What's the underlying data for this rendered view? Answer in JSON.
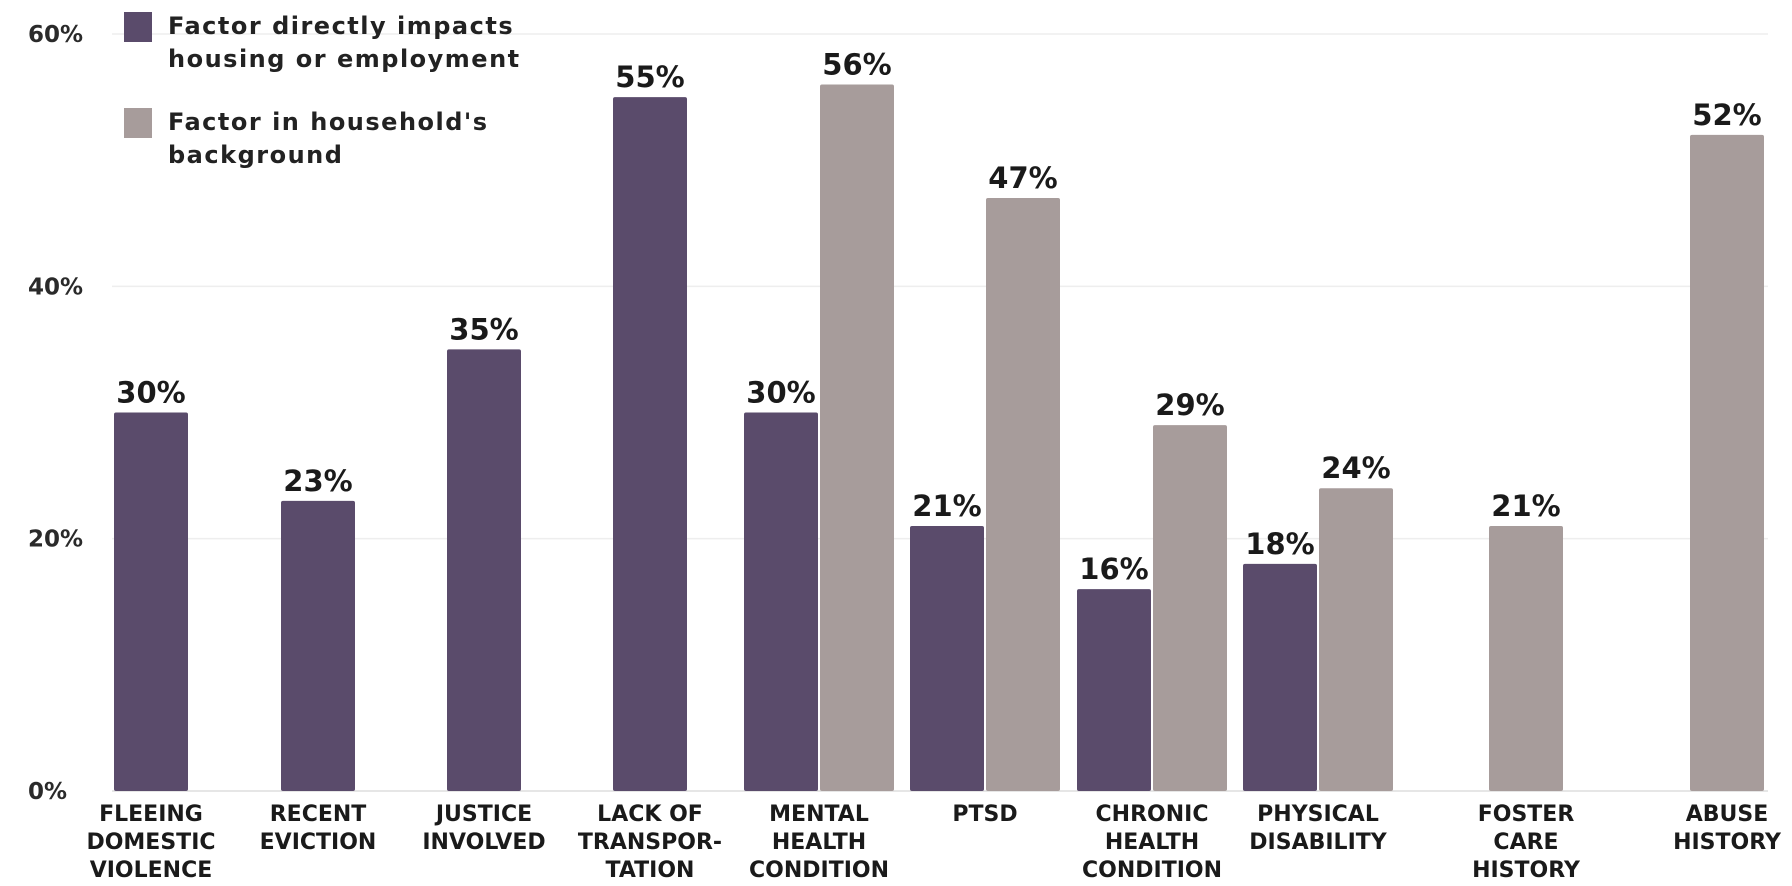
{
  "chart_data": {
    "type": "bar",
    "ylim": [
      0,
      60
    ],
    "y_ticks": [
      {
        "value": 0,
        "label": "0%"
      },
      {
        "value": 20,
        "label": "20%"
      },
      {
        "value": 40,
        "label": "40%"
      },
      {
        "value": 60,
        "label": "60%"
      }
    ],
    "grid": true,
    "legend_position": "top-left",
    "colors": {
      "series_a": "#5a4b6b",
      "series_b": "#a79c9b"
    },
    "categories": [
      {
        "lines": [
          "FLEEING",
          "DOMESTIC",
          "VIOLENCE"
        ]
      },
      {
        "lines": [
          "RECENT",
          "EVICTION"
        ]
      },
      {
        "lines": [
          "JUSTICE",
          "INVOLVED"
        ]
      },
      {
        "lines": [
          "LACK OF",
          "TRANSPOR-",
          "TATION"
        ]
      },
      {
        "lines": [
          "MENTAL",
          "HEALTH",
          "CONDITION"
        ]
      },
      {
        "lines": [
          "PTSD"
        ]
      },
      {
        "lines": [
          "CHRONIC",
          "HEALTH",
          "CONDITION"
        ]
      },
      {
        "lines": [
          "PHYSICAL",
          "DISABILITY"
        ]
      },
      {
        "lines": [
          "FOSTER",
          "CARE",
          "HISTORY"
        ]
      },
      {
        "lines": [
          "ABUSE",
          "HISTORY"
        ]
      }
    ],
    "series": [
      {
        "name_lines": [
          "Factor directly impacts",
          "housing or employment"
        ],
        "color": "#5a4b6b",
        "values": [
          30,
          23,
          35,
          55,
          30,
          21,
          16,
          18,
          null,
          null
        ],
        "labels": [
          "30%",
          "23%",
          "35%",
          "55%",
          "30%",
          "21%",
          "16%",
          "18%",
          null,
          null
        ]
      },
      {
        "name_lines": [
          "Factor in household's",
          "background"
        ],
        "color": "#a79c9b",
        "values": [
          null,
          null,
          null,
          null,
          56,
          47,
          29,
          24,
          21,
          52
        ],
        "labels": [
          null,
          null,
          null,
          null,
          "56%",
          "47%",
          "29%",
          "24%",
          "21%",
          "52%"
        ]
      }
    ]
  }
}
